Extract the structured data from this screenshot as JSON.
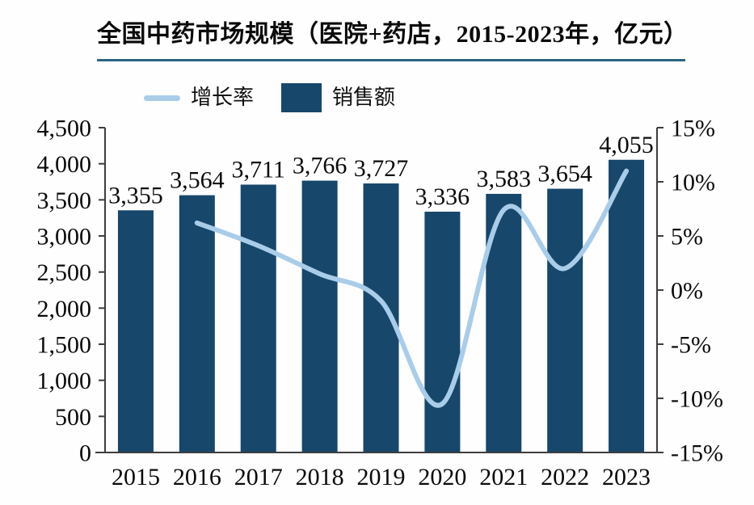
{
  "page": {
    "background": "#fefefe"
  },
  "header": {
    "underline_color": "#2a6582"
  },
  "legend": {
    "items": [
      {
        "label": "增长率",
        "swatch": "line",
        "color": "#a9cde9"
      },
      {
        "label": "销售额",
        "swatch": "square",
        "color": "#17476b"
      }
    ]
  },
  "chart_data": {
    "type": "combo-bar-line",
    "title": "全国中药市场规模（医院+药店，2015-2023年，亿元）",
    "categories": [
      "2015",
      "2016",
      "2017",
      "2018",
      "2019",
      "2020",
      "2021",
      "2022",
      "2023"
    ],
    "series": [
      {
        "name": "销售额",
        "type": "bar",
        "axis": "left",
        "color": "#17476b",
        "values": [
          3355,
          3564,
          3711,
          3766,
          3727,
          3336,
          3583,
          3654,
          4055
        ],
        "value_labels": [
          "3,355",
          "3,564",
          "3,711",
          "3,766",
          "3,727",
          "3,336",
          "3,583",
          "3,654",
          "4,055"
        ]
      },
      {
        "name": "增长率",
        "type": "line",
        "axis": "right",
        "color": "#a9cde9",
        "values": [
          null,
          6.2,
          4.1,
          1.5,
          -1.0,
          -10.5,
          7.4,
          2.0,
          11.0
        ]
      }
    ],
    "left_axis": {
      "min": 0,
      "max": 4500,
      "step": 500,
      "tick_labels": [
        "0",
        "500",
        "1,000",
        "1,500",
        "2,000",
        "2,500",
        "3,000",
        "3,500",
        "4,000",
        "4,500"
      ]
    },
    "right_axis": {
      "min": -15,
      "max": 15,
      "step": 5,
      "tick_labels": [
        "-15%",
        "-10%",
        "-5%",
        "0%",
        "5%",
        "10%",
        "15%"
      ]
    },
    "grid": false,
    "legend_position": "top",
    "axis_color": "#3d3d3d",
    "text_color": "#0a0a0a"
  }
}
